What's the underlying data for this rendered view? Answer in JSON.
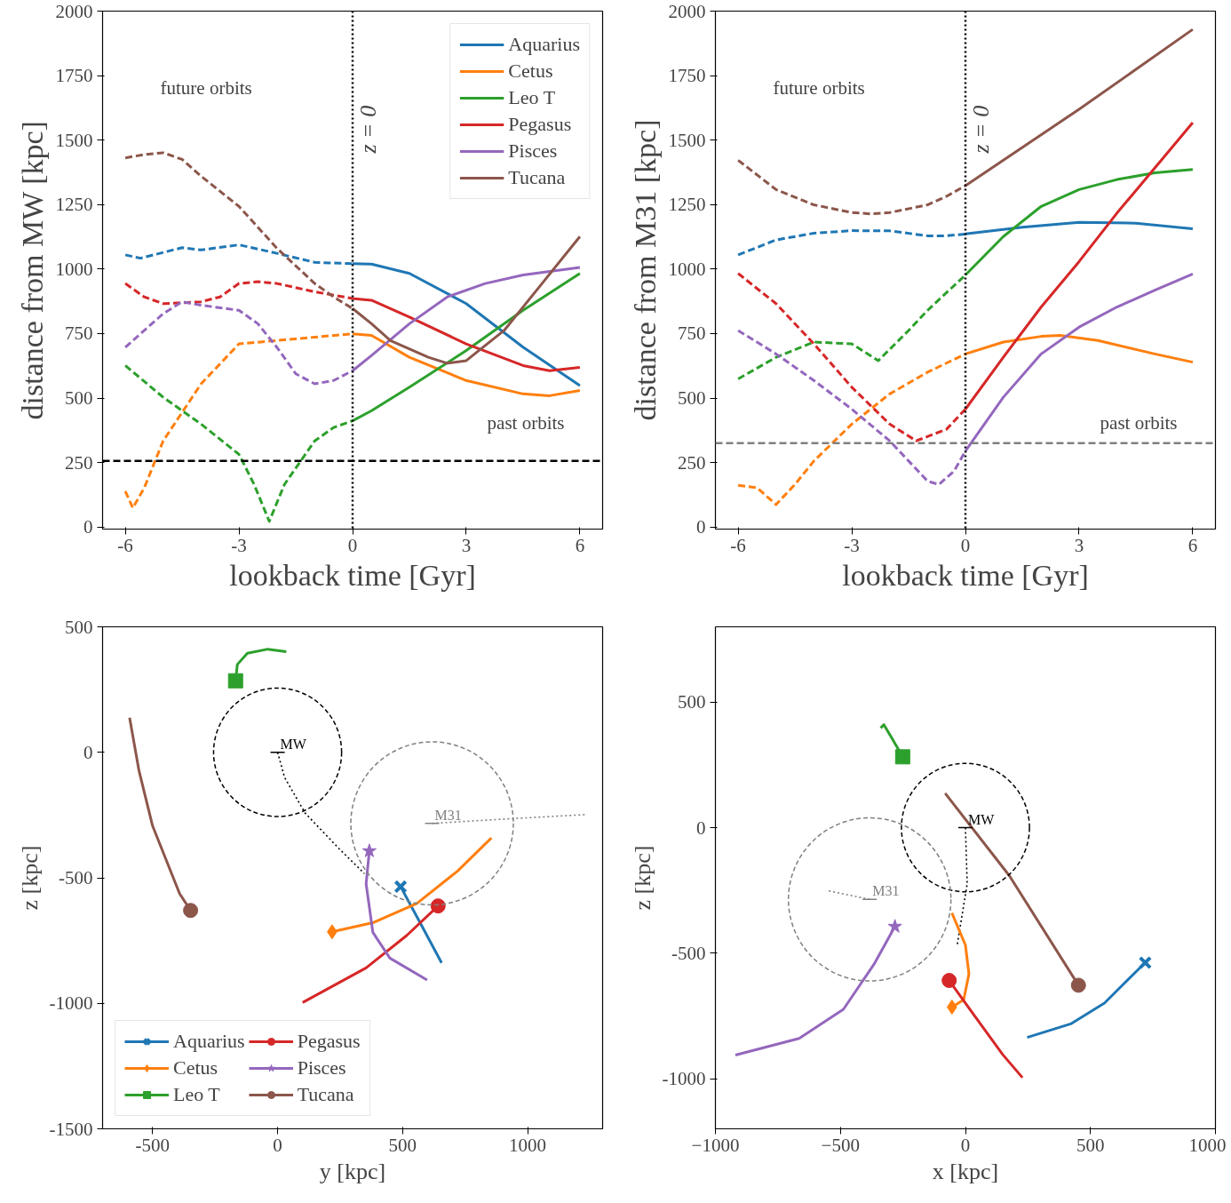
{
  "chart_data": [
    {
      "type": "line",
      "xlabel": "lookback time [Gyr]",
      "ylabel": "distance from MW [kpc]",
      "xlim": [
        -6.6,
        6.6
      ],
      "ylim": [
        -8,
        2000
      ],
      "xticks": [
        -6,
        -3,
        0,
        3,
        6
      ],
      "yticks": [
        0,
        250,
        500,
        750,
        1000,
        1250,
        1500,
        1750,
        2000
      ],
      "grid": false,
      "legend": "top right",
      "line_style": "solid",
      "annotations": [
        "future orbits",
        "past orbits"
      ],
      "ref_lines": [
        {
          "axis": "x",
          "value": 0,
          "label": "z = 0",
          "color": "#000000",
          "line_style": "dotted"
        },
        {
          "axis": "y",
          "value": 256,
          "color": "#000000",
          "line_style": "dashed"
        }
      ],
      "series": [
        {
          "color": "#1f77b4",
          "line_style": "dashed",
          "x": [
            -6,
            -5.6,
            -4.5,
            -4,
            -3,
            -2,
            -1,
            0
          ],
          "values": [
            1055,
            1042,
            1083,
            1074,
            1094,
            1061,
            1026,
            1021
          ]
        },
        {
          "color": "#ff7f0e",
          "line_style": "dashed",
          "x": [
            -6,
            -5.8,
            -5.5,
            -5,
            -4,
            -3,
            -2,
            -1,
            0
          ],
          "values": [
            139,
            74,
            152,
            334,
            555,
            710,
            723,
            736,
            749
          ]
        },
        {
          "color": "#2ca02c",
          "line_style": "dashed",
          "x": [
            -6,
            -5,
            -4,
            -3,
            -2.6,
            -2.2,
            -1.8,
            -1,
            -0.5,
            0
          ],
          "values": [
            626,
            503,
            399,
            282,
            165,
            22,
            165,
            334,
            386,
            412
          ]
        },
        {
          "color": "#d62728",
          "line_style": "dashed",
          "x": [
            -6,
            -5.5,
            -5,
            -4,
            -3.5,
            -3,
            -2.5,
            -2,
            -1,
            0
          ],
          "values": [
            944,
            892,
            866,
            873,
            892,
            944,
            951,
            944,
            912,
            886
          ]
        },
        {
          "color": "#9467bd",
          "line_style": "dashed",
          "x": [
            -6,
            -5,
            -4.5,
            -4,
            -3,
            -2.5,
            -2,
            -1.5,
            -1,
            -0.5,
            0
          ],
          "values": [
            697,
            827,
            873,
            860,
            840,
            788,
            697,
            594,
            555,
            568,
            606
          ]
        },
        {
          "color": "#8c564b",
          "line_style": "dashed",
          "x": [
            -6,
            -5.5,
            -5,
            -4.5,
            -4,
            -3,
            -2,
            -1,
            -0.5,
            0
          ],
          "values": [
            1431,
            1444,
            1451,
            1425,
            1360,
            1243,
            1081,
            944,
            892,
            847
          ]
        },
        {
          "name": "Aquarius",
          "color": "#1f77b4",
          "x": [
            0,
            0.5,
            1.5,
            3,
            4.5,
            6
          ],
          "values": [
            1021,
            1019,
            983,
            866,
            697,
            548
          ]
        },
        {
          "name": "Cetus",
          "color": "#ff7f0e",
          "x": [
            0,
            0.5,
            1.5,
            3,
            4.5,
            5.2,
            6
          ],
          "values": [
            749,
            743,
            658,
            568,
            516,
            509,
            529
          ]
        },
        {
          "name": "Leo T",
          "color": "#2ca02c",
          "x": [
            0,
            0.5,
            1.5,
            3,
            4.5,
            6
          ],
          "values": [
            412,
            451,
            542,
            684,
            840,
            983
          ]
        },
        {
          "name": "Pegasus",
          "color": "#d62728",
          "x": [
            0,
            0.5,
            1.5,
            3,
            4.5,
            5.2,
            6
          ],
          "values": [
            886,
            879,
            814,
            710,
            626,
            606,
            619
          ]
        },
        {
          "name": "Pisces",
          "color": "#9467bd",
          "x": [
            0,
            0.5,
            1.5,
            2.5,
            3.5,
            4.5,
            6
          ],
          "values": [
            606,
            665,
            788,
            892,
            944,
            977,
            1006
          ]
        },
        {
          "name": "Tucana",
          "color": "#8c564b",
          "x": [
            0,
            0.5,
            1,
            2,
            2.5,
            3,
            4,
            5,
            6
          ],
          "values": [
            847,
            788,
            723,
            658,
            635,
            645,
            762,
            944,
            1126
          ]
        }
      ]
    },
    {
      "type": "line",
      "xlabel": "lookback time [Gyr]",
      "ylabel": "distance from M31 [kpc]",
      "xlim": [
        -6.6,
        6.6
      ],
      "ylim": [
        -8,
        2000
      ],
      "xticks": [
        -6,
        -3,
        0,
        3,
        6
      ],
      "yticks": [
        0,
        250,
        500,
        750,
        1000,
        1250,
        1500,
        1750,
        2000
      ],
      "grid": false,
      "line_style": "solid",
      "annotations": [
        "future orbits",
        "past orbits"
      ],
      "ref_lines": [
        {
          "axis": "x",
          "value": 0,
          "label": "z = 0",
          "color": "#000000",
          "line_style": "dotted"
        },
        {
          "axis": "y",
          "value": 325,
          "color": "#808080",
          "line_style": "dashed"
        }
      ],
      "series": [
        {
          "color": "#1f77b4",
          "line_style": "dashed",
          "x": [
            -6,
            -5,
            -4,
            -3,
            -2,
            -1,
            -0.5,
            0
          ],
          "values": [
            1055,
            1113,
            1139,
            1149,
            1148,
            1129,
            1129,
            1136
          ]
        },
        {
          "color": "#ff7f0e",
          "line_style": "dashed",
          "x": [
            -6,
            -5.5,
            -5,
            -4.5,
            -4,
            -3,
            -2,
            -1,
            0
          ],
          "values": [
            162,
            152,
            87,
            165,
            256,
            399,
            516,
            600,
            671
          ]
        },
        {
          "color": "#2ca02c",
          "line_style": "dashed",
          "x": [
            -6,
            -5,
            -4,
            -3,
            -2.3,
            -1.5,
            -1,
            0
          ],
          "values": [
            574,
            658,
            717,
            710,
            645,
            762,
            840,
            977
          ]
        },
        {
          "color": "#d62728",
          "line_style": "dashed",
          "x": [
            -6,
            -5,
            -4,
            -3,
            -2,
            -1.3,
            -0.5,
            0
          ],
          "values": [
            983,
            866,
            710,
            542,
            399,
            334,
            379,
            457
          ]
        },
        {
          "color": "#9467bd",
          "line_style": "dashed",
          "x": [
            -6,
            -5,
            -4,
            -3,
            -2,
            -1.5,
            -1,
            -0.7,
            -0.3,
            0
          ],
          "values": [
            762,
            671,
            568,
            457,
            334,
            256,
            178,
            165,
            217,
            295
          ]
        },
        {
          "color": "#8c564b",
          "line_style": "dashed",
          "x": [
            -6,
            -5,
            -4,
            -3,
            -2.5,
            -2,
            -1,
            -0.5,
            0
          ],
          "values": [
            1422,
            1308,
            1249,
            1219,
            1214,
            1219,
            1249,
            1282,
            1323
          ]
        },
        {
          "color": "#1f77b4",
          "x": [
            0,
            1.5,
            3,
            4.5,
            6
          ],
          "values": [
            1136,
            1162,
            1181,
            1178,
            1156
          ]
        },
        {
          "color": "#ff7f0e",
          "x": [
            0,
            1,
            2,
            2.5,
            3.5,
            5,
            6
          ],
          "values": [
            671,
            717,
            739,
            743,
            723,
            671,
            639
          ]
        },
        {
          "color": "#2ca02c",
          "x": [
            0,
            1,
            2,
            3,
            4,
            5,
            6
          ],
          "values": [
            977,
            1126,
            1243,
            1308,
            1347,
            1373,
            1386
          ]
        },
        {
          "color": "#d62728",
          "x": [
            0,
            1,
            2,
            3,
            4,
            5,
            6
          ],
          "values": [
            457,
            658,
            853,
            1029,
            1217,
            1392,
            1568
          ]
        },
        {
          "color": "#9467bd",
          "x": [
            0,
            1,
            2,
            3,
            4,
            5,
            6
          ],
          "values": [
            295,
            503,
            671,
            775,
            853,
            918,
            981
          ]
        },
        {
          "color": "#8c564b",
          "x": [
            0,
            3,
            6
          ],
          "values": [
            1323,
            1619,
            1929
          ]
        }
      ]
    },
    {
      "type": "line",
      "xlabel": "y [kpc]",
      "ylabel": "z [kpc]",
      "xlim": [
        -700,
        1300
      ],
      "ylim": [
        -1500,
        500
      ],
      "xticks": [
        -500,
        0,
        500,
        1000
      ],
      "yticks": [
        -1500,
        -1000,
        -500,
        0,
        500
      ],
      "grid": false,
      "legend": "bottom left",
      "line_style": "solid",
      "annotations": [
        {
          "text": "MW",
          "x": 0,
          "y": 0
        },
        {
          "text": "M31",
          "x": 618,
          "y": -283
        }
      ],
      "series": [
        {
          "color": "#000000",
          "line_style": "dotted",
          "x": [
            0,
            28,
            110,
            245,
            347
          ],
          "values": [
            0,
            -100,
            -242,
            -383,
            -483
          ]
        },
        {
          "color": "#808080",
          "line_style": "dotted",
          "x": [
            618,
            923,
            1234
          ],
          "values": [
            -283,
            -265,
            -248
          ]
        },
        {
          "name": "Aquarius",
          "color": "#1f77b4",
          "x": [
            492,
            570,
            656
          ],
          "values": [
            -535,
            -679,
            -839
          ]
        },
        {
          "name": "Cetus",
          "color": "#ff7f0e",
          "x": [
            218,
            381,
            557,
            720,
            855
          ],
          "values": [
            -715,
            -679,
            -602,
            -473,
            -341
          ]
        },
        {
          "name": "Leo T",
          "color": "#2ca02c",
          "x": [
            -168,
            -161,
            -121,
            -39,
            35
          ],
          "values": [
            285,
            350,
            395,
            411,
            401
          ]
        },
        {
          "name": "Pegasus",
          "color": "#d62728",
          "x": [
            642,
            516,
            354,
            100
          ],
          "values": [
            -612,
            -730,
            -859,
            -997
          ]
        },
        {
          "name": "Pisces",
          "color": "#9467bd",
          "x": [
            367,
            354,
            381,
            449,
            598
          ],
          "values": [
            -393,
            -524,
            -717,
            -820,
            -907
          ]
        },
        {
          "name": "Tucana",
          "color": "#8c564b",
          "x": [
            -348,
            -392,
            -500,
            -554,
            -592
          ],
          "values": [
            -630,
            -563,
            -293,
            -75,
            138
          ]
        },
        {
          "type": "scatter",
          "marker": "cross",
          "color": "#1f77b4",
          "x": [
            492
          ],
          "values": [
            -535
          ]
        },
        {
          "type": "scatter",
          "marker": "diamond",
          "color": "#ff7f0e",
          "x": [
            218
          ],
          "values": [
            -715
          ]
        },
        {
          "type": "scatter",
          "marker": "square",
          "color": "#2ca02c",
          "x": [
            -168
          ],
          "values": [
            285
          ]
        },
        {
          "type": "scatter",
          "marker": "circle",
          "color": "#d62728",
          "x": [
            642
          ],
          "values": [
            -612
          ]
        },
        {
          "type": "scatter",
          "marker": "star",
          "color": "#9467bd",
          "x": [
            367
          ],
          "values": [
            -393
          ]
        },
        {
          "type": "scatter",
          "marker": "circle",
          "color": "#8c564b",
          "x": [
            -348
          ],
          "values": [
            -630
          ]
        }
      ]
    },
    {
      "type": "line",
      "xlabel": "x [kpc]",
      "ylabel": "z [kpc]",
      "xlim": [
        -1000,
        1000
      ],
      "ylim": [
        -1200,
        800
      ],
      "xticks": [
        {
          "value": -1000,
          "label": "−1000"
        },
        {
          "value": -500,
          "label": "−500"
        },
        0,
        500,
        1000
      ],
      "yticks": [
        -1000,
        -500,
        0,
        500
      ],
      "grid": false,
      "line_style": "solid",
      "annotations": [
        {
          "text": "MW",
          "x": 0,
          "y": 0
        },
        {
          "text": "M31",
          "x": -383,
          "y": -286
        }
      ],
      "series": [
        {
          "color": "#000000",
          "line_style": "dotted",
          "x": [
            0,
            7,
            -34
          ],
          "values": [
            0,
            -224,
            -474
          ]
        },
        {
          "color": "#808080",
          "line_style": "dotted",
          "x": [
            -383,
            -556
          ],
          "values": [
            -286,
            -250
          ]
        },
        {
          "color": "#1f77b4",
          "x": [
            719,
            556,
            421,
            247
          ],
          "values": [
            -538,
            -699,
            -782,
            -836
          ]
        },
        {
          "color": "#ff7f0e",
          "x": [
            -54,
            -7,
            14,
            0,
            -54
          ],
          "values": [
            -715,
            -686,
            -583,
            -468,
            -340
          ]
        },
        {
          "color": "#2ca02c",
          "x": [
            -251,
            -299,
            -326,
            -339
          ],
          "values": [
            282,
            365,
            410,
            397
          ]
        },
        {
          "color": "#d62728",
          "x": [
            -65,
            27,
            149,
            228
          ],
          "values": [
            -609,
            -737,
            -904,
            -996
          ]
        },
        {
          "color": "#9467bd",
          "x": [
            -282,
            -366,
            -488,
            -665,
            -920
          ],
          "values": [
            -394,
            -545,
            -724,
            -840,
            -906
          ]
        },
        {
          "color": "#8c564b",
          "x": [
            452,
            176,
            -81
          ],
          "values": [
            -628,
            -192,
            137
          ]
        },
        {
          "type": "scatter",
          "marker": "cross",
          "color": "#1f77b4",
          "x": [
            719
          ],
          "values": [
            -538
          ]
        },
        {
          "type": "scatter",
          "marker": "diamond",
          "color": "#ff7f0e",
          "x": [
            -54
          ],
          "values": [
            -715
          ]
        },
        {
          "type": "scatter",
          "marker": "square",
          "color": "#2ca02c",
          "x": [
            -251
          ],
          "values": [
            282
          ]
        },
        {
          "type": "scatter",
          "marker": "circle",
          "color": "#d62728",
          "x": [
            -65
          ],
          "values": [
            -609
          ]
        },
        {
          "type": "scatter",
          "marker": "star",
          "color": "#9467bd",
          "x": [
            -282
          ],
          "values": [
            -394
          ]
        },
        {
          "type": "scatter",
          "marker": "circle",
          "color": "#8c564b",
          "x": [
            452
          ],
          "values": [
            -628
          ]
        }
      ]
    }
  ]
}
